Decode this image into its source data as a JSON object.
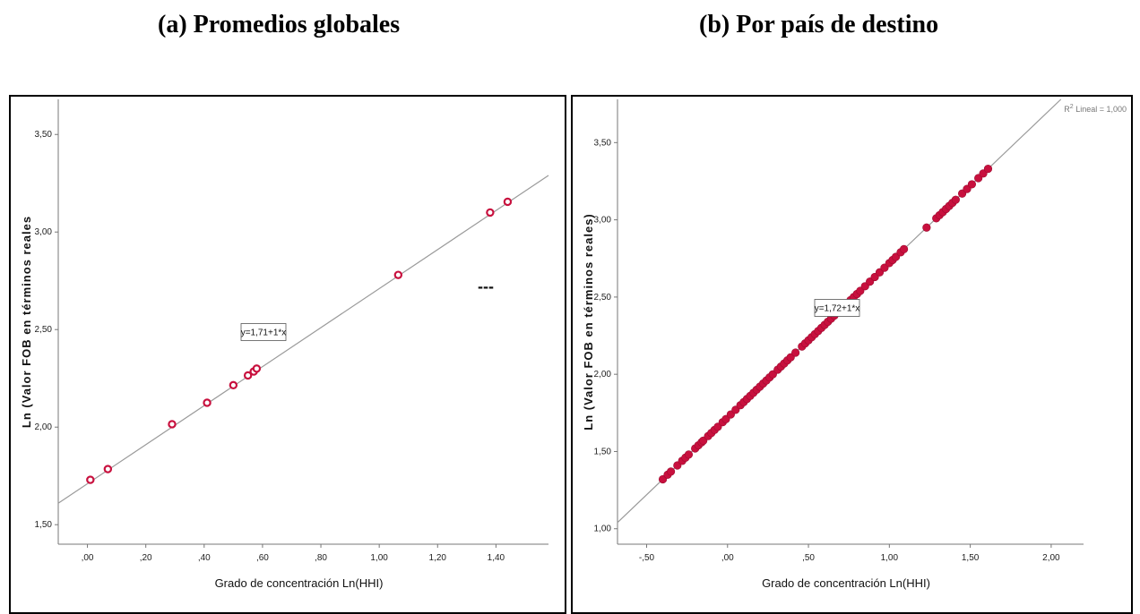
{
  "titles": {
    "a": "(a) Promedios globales",
    "b": "(b) Por país de destino"
  },
  "colors": {
    "point": "#c8103e",
    "line": "#9a9a9a",
    "axis": "#777777"
  },
  "chart_data": [
    {
      "id": "a",
      "type": "scatter",
      "marker": "hollow-circle",
      "title": "(a) Promedios globales",
      "xlabel": "Grado de concentración Ln(HHI)",
      "ylabel": "Ln (Valor FOB en términos reales",
      "xlim": [
        -0.1,
        1.58
      ],
      "ylim": [
        1.4,
        3.68
      ],
      "xticks": [
        0.0,
        0.2,
        0.4,
        0.6,
        0.8,
        1.0,
        1.2,
        1.4
      ],
      "xtick_labels": [
        ",00",
        ",20",
        ",40",
        ",60",
        ",80",
        "1,00",
        "1,20",
        "1,40"
      ],
      "yticks": [
        1.5,
        2.0,
        2.5,
        3.0,
        3.5
      ],
      "ytick_labels": [
        "1,50",
        "2,00",
        "2,50",
        "3,00",
        "3,50"
      ],
      "fit_line": {
        "intercept": 1.71,
        "slope": 1,
        "label": "y=1,71+1*x"
      },
      "legend_marker": "---",
      "grid": false,
      "points": [
        {
          "x": 0.01,
          "y": 1.73
        },
        {
          "x": 0.07,
          "y": 1.785
        },
        {
          "x": 0.29,
          "y": 2.015
        },
        {
          "x": 0.41,
          "y": 2.125
        },
        {
          "x": 0.5,
          "y": 2.215
        },
        {
          "x": 0.55,
          "y": 2.265
        },
        {
          "x": 0.57,
          "y": 2.285
        },
        {
          "x": 0.58,
          "y": 2.3
        },
        {
          "x": 1.065,
          "y": 2.78
        },
        {
          "x": 1.38,
          "y": 3.1
        },
        {
          "x": 1.44,
          "y": 3.155
        }
      ]
    },
    {
      "id": "b",
      "type": "scatter",
      "marker": "filled-circle",
      "title": "(b) Por país de destino",
      "xlabel": "Grado de concentración Ln(HHI)",
      "ylabel": "Ln (Valor FOB en términos reales)",
      "xlim": [
        -0.68,
        2.2
      ],
      "ylim": [
        0.9,
        3.78
      ],
      "xticks": [
        -0.5,
        0.0,
        0.5,
        1.0,
        1.5,
        2.0
      ],
      "xtick_labels": [
        "-,50",
        ",00",
        ",50",
        "1,00",
        "1,50",
        "2,00"
      ],
      "yticks": [
        1.0,
        1.5,
        2.0,
        2.5,
        3.0,
        3.5
      ],
      "ytick_labels": [
        "1,00",
        "1,50",
        "2,00",
        "2,50",
        "3,00",
        "3,50"
      ],
      "fit_line": {
        "intercept": 1.72,
        "slope": 1,
        "label": "y=1,72+1*x"
      },
      "r2_label": {
        "prefix": "R",
        "sup": "2",
        "suffix": " Lineal = 1,000"
      },
      "grid": false,
      "points": [
        {
          "x": -0.4,
          "y": 1.32
        },
        {
          "x": -0.37,
          "y": 1.35
        },
        {
          "x": -0.35,
          "y": 1.37
        },
        {
          "x": -0.31,
          "y": 1.41
        },
        {
          "x": -0.28,
          "y": 1.44
        },
        {
          "x": -0.26,
          "y": 1.46
        },
        {
          "x": -0.24,
          "y": 1.48
        },
        {
          "x": -0.2,
          "y": 1.52
        },
        {
          "x": -0.18,
          "y": 1.54
        },
        {
          "x": -0.16,
          "y": 1.56
        },
        {
          "x": -0.15,
          "y": 1.57
        },
        {
          "x": -0.12,
          "y": 1.6
        },
        {
          "x": -0.1,
          "y": 1.62
        },
        {
          "x": -0.08,
          "y": 1.64
        },
        {
          "x": -0.06,
          "y": 1.66
        },
        {
          "x": -0.03,
          "y": 1.69
        },
        {
          "x": -0.01,
          "y": 1.71
        },
        {
          "x": 0.02,
          "y": 1.74
        },
        {
          "x": 0.05,
          "y": 1.77
        },
        {
          "x": 0.08,
          "y": 1.8
        },
        {
          "x": 0.1,
          "y": 1.82
        },
        {
          "x": 0.12,
          "y": 1.84
        },
        {
          "x": 0.14,
          "y": 1.86
        },
        {
          "x": 0.16,
          "y": 1.88
        },
        {
          "x": 0.18,
          "y": 1.9
        },
        {
          "x": 0.2,
          "y": 1.92
        },
        {
          "x": 0.22,
          "y": 1.94
        },
        {
          "x": 0.24,
          "y": 1.96
        },
        {
          "x": 0.26,
          "y": 1.98
        },
        {
          "x": 0.28,
          "y": 2.0
        },
        {
          "x": 0.31,
          "y": 2.03
        },
        {
          "x": 0.33,
          "y": 2.05
        },
        {
          "x": 0.35,
          "y": 2.07
        },
        {
          "x": 0.37,
          "y": 2.09
        },
        {
          "x": 0.39,
          "y": 2.11
        },
        {
          "x": 0.42,
          "y": 2.14
        },
        {
          "x": 0.46,
          "y": 2.18
        },
        {
          "x": 0.48,
          "y": 2.2
        },
        {
          "x": 0.5,
          "y": 2.22
        },
        {
          "x": 0.52,
          "y": 2.24
        },
        {
          "x": 0.54,
          "y": 2.26
        },
        {
          "x": 0.56,
          "y": 2.28
        },
        {
          "x": 0.58,
          "y": 2.3
        },
        {
          "x": 0.6,
          "y": 2.32
        },
        {
          "x": 0.62,
          "y": 2.34
        },
        {
          "x": 0.64,
          "y": 2.36
        },
        {
          "x": 0.66,
          "y": 2.38
        },
        {
          "x": 0.68,
          "y": 2.4
        },
        {
          "x": 0.7,
          "y": 2.42
        },
        {
          "x": 0.72,
          "y": 2.44
        },
        {
          "x": 0.74,
          "y": 2.46
        },
        {
          "x": 0.76,
          "y": 2.48
        },
        {
          "x": 0.78,
          "y": 2.5
        },
        {
          "x": 0.8,
          "y": 2.52
        },
        {
          "x": 0.82,
          "y": 2.54
        },
        {
          "x": 0.85,
          "y": 2.57
        },
        {
          "x": 0.88,
          "y": 2.6
        },
        {
          "x": 0.91,
          "y": 2.63
        },
        {
          "x": 0.94,
          "y": 2.66
        },
        {
          "x": 0.97,
          "y": 2.69
        },
        {
          "x": 1.0,
          "y": 2.72
        },
        {
          "x": 1.02,
          "y": 2.74
        },
        {
          "x": 1.04,
          "y": 2.76
        },
        {
          "x": 1.07,
          "y": 2.79
        },
        {
          "x": 1.09,
          "y": 2.81
        },
        {
          "x": 1.23,
          "y": 2.95
        },
        {
          "x": 1.29,
          "y": 3.01
        },
        {
          "x": 1.31,
          "y": 3.03
        },
        {
          "x": 1.33,
          "y": 3.05
        },
        {
          "x": 1.35,
          "y": 3.07
        },
        {
          "x": 1.37,
          "y": 3.09
        },
        {
          "x": 1.39,
          "y": 3.11
        },
        {
          "x": 1.41,
          "y": 3.13
        },
        {
          "x": 1.45,
          "y": 3.17
        },
        {
          "x": 1.48,
          "y": 3.2
        },
        {
          "x": 1.51,
          "y": 3.23
        },
        {
          "x": 1.55,
          "y": 3.27
        },
        {
          "x": 1.58,
          "y": 3.3
        },
        {
          "x": 1.61,
          "y": 3.33
        }
      ]
    }
  ]
}
